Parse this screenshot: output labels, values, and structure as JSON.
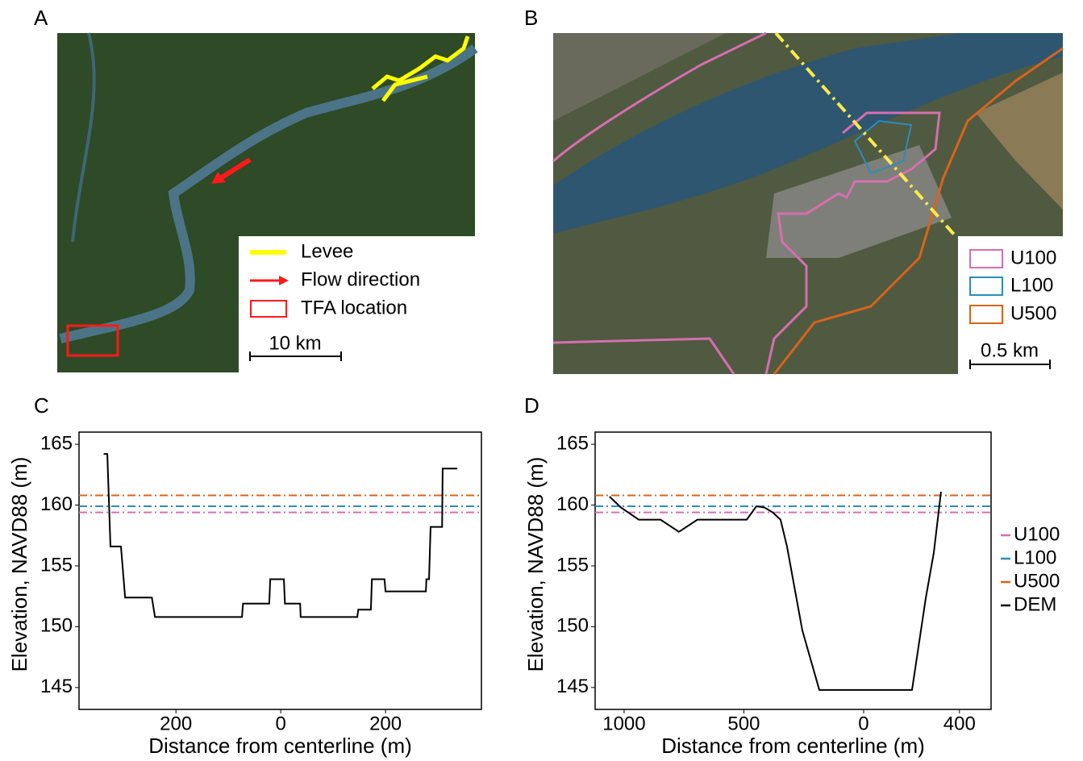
{
  "panels": {
    "a": "A",
    "b": "B",
    "c": "C",
    "d": "D"
  },
  "maps": [
    {
      "legend": [
        "Levee",
        "Flow direction",
        "TFA location"
      ],
      "scale_bar": "10 km"
    },
    {
      "legend": [
        "U100",
        "L100",
        "U500"
      ],
      "scale_bar": "0.5 km"
    }
  ],
  "chart_data": [
    {
      "type": "line",
      "xlabel": "Distance from centerline (m)",
      "ylabel": "Elevation, NAVD88 (m)",
      "xlim": [
        -385,
        383
      ],
      "ylim": [
        143.2,
        166
      ],
      "xticks": [
        {
          "value": -200,
          "label": "200"
        },
        0,
        200
      ],
      "yticks": [
        145,
        150,
        155,
        160,
        165
      ],
      "hlines": [
        {
          "value": 159.4,
          "color": "#d66fb0"
        },
        {
          "value": 159.9,
          "color": "#2b8cbe"
        },
        {
          "value": 160.8,
          "color": "#d9641c"
        }
      ],
      "series": [
        {
          "color": "#000000",
          "x": [
            -338,
            -331,
            -325,
            -305,
            -297,
            -246,
            -240,
            -74,
            -72,
            -22,
            -20,
            6,
            8,
            37,
            38,
            146,
            148,
            172,
            174,
            198,
            200,
            277,
            278,
            283,
            286,
            308,
            309,
            337
          ],
          "values": [
            164.2,
            164.2,
            156.6,
            156.6,
            152.4,
            152.4,
            150.8,
            150.8,
            151.9,
            151.9,
            153.9,
            153.9,
            151.9,
            151.9,
            150.8,
            150.8,
            151.4,
            151.4,
            153.9,
            153.9,
            152.9,
            152.9,
            153.9,
            153.9,
            158.2,
            158.2,
            163.0,
            163.0
          ]
        }
      ]
    },
    {
      "type": "line",
      "xlabel": "Distance from centerline (m)",
      "ylabel": "Elevation, NAVD88 (m)",
      "xlim": [
        -1121,
        532
      ],
      "ylim": [
        143.2,
        166
      ],
      "xticks": [
        {
          "value": -1000,
          "label": "1000"
        },
        {
          "value": -500,
          "label": "500"
        },
        0,
        400
      ],
      "yticks": [
        145,
        150,
        155,
        160,
        165
      ],
      "hlines": [
        {
          "name": "U100",
          "value": 159.4,
          "color": "#d66fb0"
        },
        {
          "name": "L100",
          "value": 159.9,
          "color": "#2b8cbe"
        },
        {
          "name": "U500",
          "value": 160.8,
          "color": "#d9641c"
        }
      ],
      "series": [
        {
          "name": "DEM",
          "color": "#000000",
          "x": [
            -1061,
            -1013,
            -939,
            -848,
            -771,
            -694,
            -488,
            -448,
            -414,
            -380,
            -347,
            -320,
            -256,
            -185,
            202,
            259,
            293,
            323
          ],
          "values": [
            160.7,
            159.8,
            158.8,
            158.8,
            157.8,
            158.8,
            158.8,
            159.9,
            159.8,
            159.4,
            158.8,
            156.6,
            149.7,
            144.8,
            144.8,
            152.3,
            156.1,
            161.1
          ]
        }
      ]
    }
  ]
}
